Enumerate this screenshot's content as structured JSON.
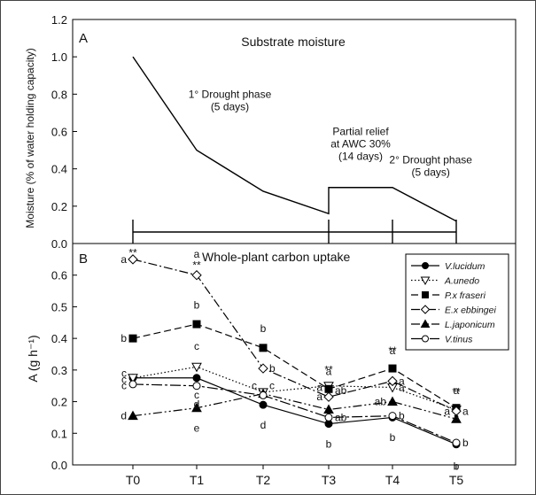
{
  "chart_data": [
    {
      "panel": "A",
      "type": "line",
      "title": "Substrate moisture",
      "ylabel": "Moisture (% of water holding capacity)",
      "ylim": [
        0,
        1.2
      ],
      "yticks": [
        "0.0",
        "0.2",
        "0.4",
        "0.6",
        "0.8",
        "1.0",
        "1.2"
      ],
      "x_index": [
        0,
        1,
        2,
        3,
        3,
        4,
        5
      ],
      "values": [
        1.0,
        0.5,
        0.28,
        0.16,
        0.3,
        0.3,
        0.12
      ],
      "annotations": [
        {
          "lines": [
            "1° Drought phase",
            "(5 days)"
          ],
          "x": 1.5,
          "y": 0.78
        },
        {
          "lines": [
            "Partial relief",
            "at AWC 30%",
            "(14 days)"
          ],
          "x": 3.5,
          "y": 0.58
        },
        {
          "lines": [
            "2° Drought phase",
            "(5 days)"
          ],
          "x": 4.6,
          "y": 0.43
        }
      ],
      "phase_marks": [
        0,
        3,
        4,
        5
      ]
    },
    {
      "panel": "B",
      "type": "line",
      "title": "Whole-plant carbon uptake",
      "ylabel": "A (g h⁻¹)",
      "ylim": [
        0,
        0.7
      ],
      "yticks": [
        "0.0",
        "0.1",
        "0.2",
        "0.3",
        "0.4",
        "0.5",
        "0.6"
      ],
      "categories": [
        "T0",
        "T1",
        "T2",
        "T3",
        "T4",
        "T5"
      ],
      "series": [
        {
          "name": "V.lucidum",
          "marker": "circle",
          "fill": "#000000",
          "dash": "",
          "values": [
            0.275,
            0.275,
            0.19,
            0.13,
            0.15,
            0.065
          ]
        },
        {
          "name": "A.unedo",
          "marker": "tri-down",
          "fill": "#ffffff",
          "dash": "1.5,2.5",
          "values": [
            0.275,
            0.31,
            0.23,
            0.25,
            0.245,
            0.175
          ]
        },
        {
          "name": "P.x fraseri",
          "marker": "square",
          "fill": "#000000",
          "dash": "8,4",
          "values": [
            0.4,
            0.445,
            0.37,
            0.24,
            0.305,
            0.18
          ]
        },
        {
          "name": "E.x ebbingei",
          "marker": "diamond",
          "fill": "#ffffff",
          "dash": "10,3,2,3",
          "values": [
            0.65,
            0.6,
            0.305,
            0.215,
            0.265,
            0.17
          ]
        },
        {
          "name": "L.japonicum",
          "marker": "tri-up",
          "fill": "#000000",
          "dash": "10,3,2,3,2,3",
          "values": [
            0.155,
            0.18,
            0.225,
            0.175,
            0.2,
            0.145
          ]
        },
        {
          "name": "V.tinus",
          "marker": "circle",
          "fill": "#ffffff",
          "dash": "12,3,3,3",
          "values": [
            0.255,
            0.25,
            0.22,
            0.15,
            0.155,
            0.07
          ]
        }
      ],
      "significance": [
        {
          "x": 0,
          "y": 0.66,
          "text": "**"
        },
        {
          "x": 1,
          "y": 0.62,
          "text": "**"
        },
        {
          "x": 3,
          "y": 0.29,
          "text": "**"
        },
        {
          "x": 4,
          "y": 0.35,
          "text": "**"
        },
        {
          "x": 5,
          "y": 0.22,
          "text": "**"
        }
      ],
      "letters": [
        {
          "x": 0,
          "y": 0.65,
          "text": "a",
          "side": "left"
        },
        {
          "x": 0,
          "y": 0.4,
          "text": "b",
          "side": "left"
        },
        {
          "x": 0,
          "y": 0.29,
          "text": "c",
          "side": "left"
        },
        {
          "x": 0,
          "y": 0.27,
          "text": "c",
          "side": "left"
        },
        {
          "x": 0,
          "y": 0.25,
          "text": "c",
          "side": "left"
        },
        {
          "x": 0,
          "y": 0.155,
          "text": "d",
          "side": "left"
        },
        {
          "x": 1,
          "y": 0.635,
          "text": "a",
          "side": "above"
        },
        {
          "x": 1,
          "y": 0.475,
          "text": "b",
          "side": "above"
        },
        {
          "x": 1,
          "y": 0.345,
          "text": "c",
          "side": "above"
        },
        {
          "x": 1,
          "y": 0.255,
          "text": "c",
          "side": "below"
        },
        {
          "x": 1,
          "y": 0.225,
          "text": "d",
          "side": "below"
        },
        {
          "x": 1,
          "y": 0.15,
          "text": "e",
          "side": "below"
        },
        {
          "x": 2,
          "y": 0.4,
          "text": "b",
          "side": "above"
        },
        {
          "x": 2,
          "y": 0.305,
          "text": "b",
          "side": "right"
        },
        {
          "x": 2,
          "y": 0.25,
          "text": "c",
          "side": "left"
        },
        {
          "x": 2,
          "y": 0.25,
          "text": "c",
          "side": "right"
        },
        {
          "x": 2,
          "y": 0.16,
          "text": "d",
          "side": "below"
        },
        {
          "x": 3,
          "y": 0.265,
          "text": "a",
          "side": "above"
        },
        {
          "x": 3,
          "y": 0.245,
          "text": "a",
          "side": "left"
        },
        {
          "x": 3,
          "y": 0.235,
          "text": "ab",
          "side": "right"
        },
        {
          "x": 3,
          "y": 0.215,
          "text": "a",
          "side": "left"
        },
        {
          "x": 3,
          "y": 0.15,
          "text": "ab",
          "side": "right"
        },
        {
          "x": 3,
          "y": 0.1,
          "text": "b",
          "side": "below"
        },
        {
          "x": 4,
          "y": 0.33,
          "text": "a",
          "side": "above"
        },
        {
          "x": 4,
          "y": 0.265,
          "text": "a",
          "side": "right"
        },
        {
          "x": 4,
          "y": 0.245,
          "text": "a",
          "side": "right"
        },
        {
          "x": 4,
          "y": 0.2,
          "text": "ab",
          "side": "left"
        },
        {
          "x": 4,
          "y": 0.155,
          "text": "b",
          "side": "right"
        },
        {
          "x": 4,
          "y": 0.12,
          "text": "b",
          "side": "below"
        },
        {
          "x": 5,
          "y": 0.205,
          "text": "a",
          "side": "above"
        },
        {
          "x": 5,
          "y": 0.17,
          "text": "a",
          "side": "right"
        },
        {
          "x": 5,
          "y": 0.17,
          "text": "a",
          "side": "left"
        },
        {
          "x": 5,
          "y": 0.12,
          "text": "a",
          "side": "above"
        },
        {
          "x": 5,
          "y": 0.07,
          "text": "b",
          "side": "right"
        },
        {
          "x": 5,
          "y": 0.03,
          "text": "b",
          "side": "below"
        }
      ]
    }
  ]
}
